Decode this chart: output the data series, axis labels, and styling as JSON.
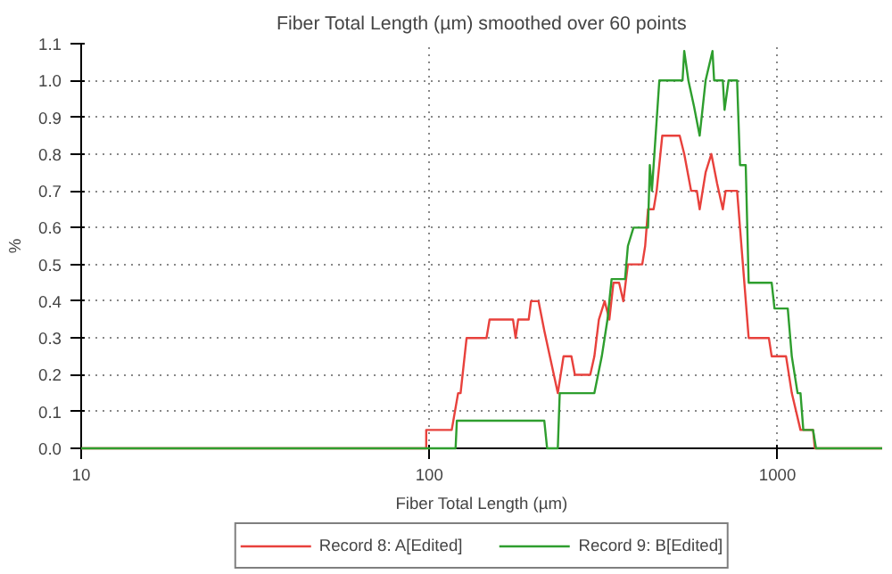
{
  "chart_data": {
    "type": "line",
    "title": "Fiber Total Length (µm) smoothed over 60 points",
    "xlabel": "Fiber Total Length (µm)",
    "ylabel": "%",
    "log": "x",
    "xlim": [
      10,
      2000
    ],
    "xticks": [
      10,
      100,
      1000
    ],
    "ylim": [
      0,
      1.1
    ],
    "yticks": [
      {
        "value": 0,
        "label": "0.0"
      },
      {
        "value": 0.1,
        "label": "0.1"
      },
      {
        "value": 0.2,
        "label": "0.2"
      },
      {
        "value": 0.3,
        "label": "0.3"
      },
      {
        "value": 0.4,
        "label": "0.4"
      },
      {
        "value": 0.5,
        "label": "0.5"
      },
      {
        "value": 0.6,
        "label": "0.6"
      },
      {
        "value": 0.7,
        "label": "0.7"
      },
      {
        "value": 0.8,
        "label": "0.8"
      },
      {
        "value": 0.9,
        "label": "0.9"
      },
      {
        "value": 1.0,
        "label": "1.0"
      },
      {
        "value": 1.1,
        "label": "1.1"
      }
    ],
    "grid": true,
    "legend": "bottom",
    "marker": "none",
    "line_style": "solid",
    "series": [
      {
        "name": "Record 8: A[Edited]",
        "color": "#e8413c",
        "x": [
          10,
          98,
          98,
          116,
          121,
          123,
          128,
          146,
          149,
          174,
          177,
          180,
          193,
          196,
          206,
          214,
          222,
          234,
          243,
          256,
          262,
          290,
          298,
          307,
          319,
          329,
          338,
          351,
          361,
          372,
          409,
          417,
          425,
          441,
          450,
          467,
          524,
          540,
          565,
          587,
          598,
          622,
          646,
          671,
          697,
          710,
          766,
          796,
          827,
          945,
          963,
          1059,
          1100,
          1165,
          1266,
          1281,
          2000
        ],
        "values": [
          0,
          0,
          0.05,
          0.05,
          0.15,
          0.15,
          0.3,
          0.3,
          0.35,
          0.35,
          0.3,
          0.35,
          0.35,
          0.4,
          0.4,
          0.32,
          0.25,
          0.15,
          0.25,
          0.25,
          0.2,
          0.2,
          0.25,
          0.35,
          0.4,
          0.35,
          0.45,
          0.45,
          0.4,
          0.5,
          0.5,
          0.55,
          0.65,
          0.65,
          0.7,
          0.85,
          0.85,
          0.8,
          0.7,
          0.7,
          0.65,
          0.75,
          0.8,
          0.72,
          0.65,
          0.7,
          0.7,
          0.5,
          0.3,
          0.3,
          0.25,
          0.25,
          0.15,
          0.05,
          0.05,
          0,
          0
        ]
      },
      {
        "name": "Record 9: B[Edited]",
        "color": "#2e9e2e",
        "x": [
          10,
          119,
          120,
          214,
          218,
          234,
          237,
          298,
          313,
          325,
          334,
          365,
          372,
          386,
          425,
          430,
          436,
          458,
          534,
          540,
          555,
          576,
          598,
          622,
          651,
          658,
          697,
          705,
          724,
          766,
          781,
          811,
          827,
          963,
          981,
          1071,
          1100,
          1143,
          1165,
          1187,
          1266,
          1291,
          2000
        ],
        "values": [
          0,
          0,
          0.075,
          0.075,
          0,
          0,
          0.15,
          0.15,
          0.25,
          0.35,
          0.46,
          0.46,
          0.55,
          0.6,
          0.6,
          0.77,
          0.7,
          1.0,
          1.0,
          1.08,
          1.0,
          0.93,
          0.85,
          1.0,
          1.08,
          1.0,
          1.0,
          0.92,
          1.0,
          1.0,
          0.77,
          0.77,
          0.45,
          0.45,
          0.38,
          0.38,
          0.25,
          0.15,
          0.15,
          0.05,
          0.05,
          0,
          0
        ]
      }
    ]
  }
}
